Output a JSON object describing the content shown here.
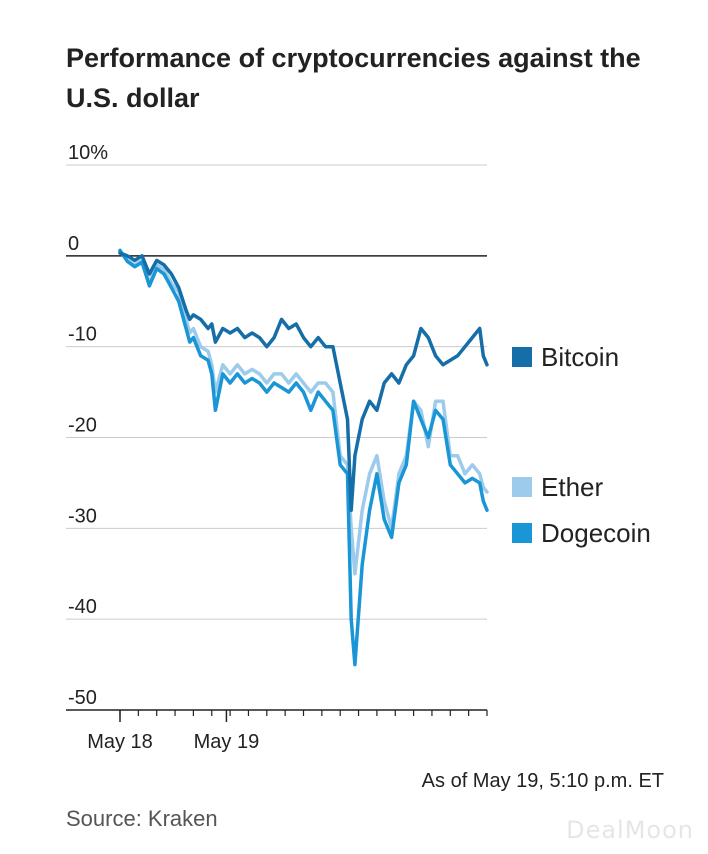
{
  "chart_data": {
    "type": "line",
    "title": "Performance of cryptocurrencies against the U.S. dollar",
    "ylabel": "",
    "xlabel": "",
    "ylim": [
      -50,
      10
    ],
    "xlim": [
      0,
      100
    ],
    "yticks": [
      10,
      0,
      -10,
      -20,
      -30,
      -40,
      -50
    ],
    "ytick_labels": [
      "10%",
      "0",
      "-10",
      "-20",
      "-30",
      "-40",
      "-50"
    ],
    "xtick_labels": [
      {
        "x": 0,
        "label": "May 18"
      },
      {
        "x": 29,
        "label": "May 19"
      }
    ],
    "minor_tick_count": 21,
    "note": "As of May 19, 5:10 p.m. ET",
    "source": "Source: Kraken",
    "series": [
      {
        "name": "Ether",
        "color": "#9ccbeb",
        "x": [
          0,
          2,
          4,
          6,
          8,
          10,
          12,
          14,
          16,
          18,
          19,
          20,
          22,
          24,
          25,
          26,
          28,
          30,
          32,
          34,
          36,
          38,
          40,
          42,
          44,
          46,
          48,
          50,
          52,
          54,
          56,
          58,
          60,
          62,
          63,
          64,
          66,
          68,
          70,
          72,
          74,
          76,
          78,
          80,
          82,
          84,
          86,
          88,
          90,
          92,
          94,
          96,
          98,
          99,
          100
        ],
        "y": [
          0.5,
          -0.5,
          -1,
          -0.5,
          -3,
          -1,
          -1.5,
          -3,
          -4,
          -7,
          -8.5,
          -8,
          -10,
          -10.5,
          -12,
          -15,
          -12,
          -13,
          -12,
          -13,
          -12.5,
          -13,
          -14,
          -13,
          -13,
          -14,
          -13,
          -14,
          -15,
          -14,
          -14,
          -15,
          -22,
          -23,
          -30,
          -35,
          -28,
          -24,
          -22,
          -27,
          -30,
          -24,
          -22,
          -16,
          -17,
          -21,
          -16,
          -16,
          -22,
          -22,
          -24,
          -23,
          -24,
          -25.5,
          -26
        ]
      },
      {
        "name": "Dogecoin",
        "color": "#1a95d6",
        "x": [
          0,
          2,
          4,
          6,
          8,
          10,
          12,
          14,
          16,
          18,
          19,
          20,
          22,
          24,
          25,
          26,
          28,
          30,
          32,
          34,
          36,
          38,
          40,
          42,
          44,
          46,
          48,
          50,
          52,
          54,
          56,
          58,
          60,
          62,
          63,
          64,
          66,
          68,
          70,
          72,
          74,
          76,
          78,
          80,
          82,
          84,
          86,
          88,
          90,
          92,
          94,
          96,
          98,
          99,
          100
        ],
        "y": [
          0.6,
          -0.6,
          -1.2,
          -0.7,
          -3.3,
          -1.4,
          -2,
          -3.5,
          -5,
          -8,
          -9.5,
          -9,
          -11,
          -11.5,
          -13,
          -17,
          -13,
          -14,
          -13,
          -14,
          -13.5,
          -14,
          -15,
          -14,
          -14.5,
          -15,
          -14,
          -15,
          -17,
          -15,
          -16,
          -17,
          -23,
          -24,
          -40,
          -45,
          -34,
          -28,
          -24,
          -29,
          -31,
          -25,
          -23,
          -16,
          -18,
          -20,
          -17,
          -18,
          -23,
          -24,
          -25,
          -24.5,
          -25,
          -27,
          -28
        ]
      },
      {
        "name": "Bitcoin",
        "color": "#156ea8",
        "x": [
          0,
          2,
          4,
          6,
          8,
          10,
          12,
          14,
          16,
          18,
          19,
          20,
          22,
          24,
          25,
          26,
          28,
          30,
          32,
          34,
          36,
          38,
          40,
          42,
          44,
          46,
          48,
          50,
          52,
          54,
          56,
          58,
          60,
          62,
          63,
          64,
          66,
          68,
          70,
          72,
          74,
          76,
          78,
          80,
          82,
          84,
          86,
          88,
          90,
          92,
          94,
          96,
          98,
          99,
          100
        ],
        "y": [
          0.3,
          0,
          -0.5,
          0,
          -2,
          -0.5,
          -1,
          -2,
          -3.5,
          -6,
          -7,
          -6.5,
          -7,
          -8,
          -7.5,
          -9.5,
          -8,
          -8.5,
          -8,
          -9,
          -8.5,
          -9,
          -10,
          -9,
          -7,
          -8,
          -7.5,
          -9,
          -10,
          -9,
          -10,
          -10,
          -14,
          -18,
          -28,
          -22,
          -18,
          -16,
          -17,
          -14,
          -13,
          -14,
          -12,
          -11,
          -8,
          -9,
          -11,
          -12,
          -11.5,
          -11,
          -10,
          -9,
          -8,
          -11,
          -12
        ]
      }
    ]
  }
}
